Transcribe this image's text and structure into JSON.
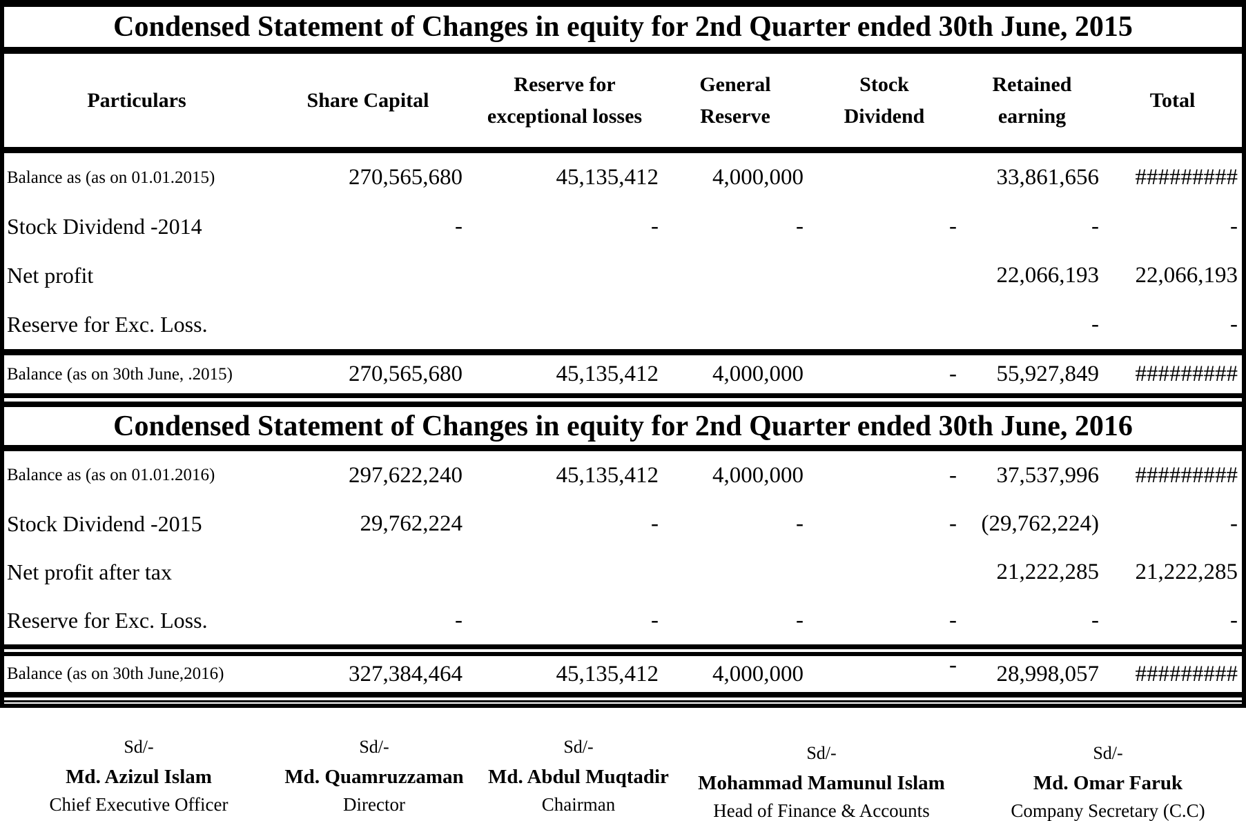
{
  "colors": {
    "ink": "#000000",
    "paper": "#ffffff"
  },
  "header": {
    "columns": [
      {
        "lines": [
          "Particulars"
        ]
      },
      {
        "lines": [
          "Share Capital"
        ]
      },
      {
        "lines": [
          "Reserve for",
          "exceptional losses"
        ]
      },
      {
        "lines": [
          "General",
          "Reserve"
        ]
      },
      {
        "lines": [
          "Stock",
          "Dividend"
        ]
      },
      {
        "lines": [
          "Retained",
          "earning"
        ]
      },
      {
        "lines": [
          "Total"
        ]
      }
    ]
  },
  "sections": [
    {
      "title": "Condensed Statement of Changes in equity for 2nd Quarter ended 30th June, 2015",
      "rows": [
        {
          "label": "Balance as (as on 01.01.2015)",
          "small_label": true,
          "cells": [
            "270,565,680",
            "45,135,412",
            "4,000,000",
            "",
            "33,861,656",
            "#########"
          ]
        },
        {
          "label": "Stock Dividend -2014",
          "small_label": false,
          "cells": [
            "-",
            "-",
            "-",
            "-",
            "-",
            "-"
          ]
        },
        {
          "label": "Net profit",
          "small_label": false,
          "cells": [
            "",
            "",
            "",
            "",
            "22,066,193",
            "22,066,193"
          ]
        },
        {
          "label": "Reserve for Exc. Loss.",
          "small_label": false,
          "cells": [
            "",
            "",
            "",
            "",
            "-",
            "-"
          ]
        }
      ],
      "balance_row": {
        "label": "Balance (as on 30th June, .2015)",
        "cells": [
          "270,565,680",
          "45,135,412",
          "4,000,000",
          "-",
          "55,927,849",
          "#########"
        ],
        "raised_dash_col": -1
      }
    },
    {
      "title": "Condensed Statement of Changes in equity for 2nd Quarter ended 30th June, 2016",
      "rows": [
        {
          "label": "Balance as (as on 01.01.2016)",
          "small_label": true,
          "cells": [
            "297,622,240",
            "45,135,412",
            "4,000,000",
            "-",
            "37,537,996",
            "#########"
          ]
        },
        {
          "label": "Stock Dividend -2015",
          "small_label": false,
          "cells": [
            "29,762,224",
            "-",
            "-",
            "-",
            "(29,762,224)",
            "-"
          ]
        },
        {
          "label": "Net profit after tax",
          "small_label": false,
          "cells": [
            "",
            "",
            "",
            "",
            "21,222,285",
            "21,222,285"
          ]
        },
        {
          "label": "Reserve for Exc. Loss.",
          "small_label": false,
          "cells": [
            "-",
            "-",
            "-",
            "-",
            "-",
            "-"
          ]
        }
      ],
      "balance_row": {
        "label": "Balance (as on 30th June,2016)",
        "cells": [
          "327,384,464",
          "45,135,412",
          "4,000,000",
          "-",
          "28,998,057",
          "#########"
        ],
        "raised_dash_col": 3
      }
    }
  ],
  "signatures": [
    {
      "sd": "Sd/-",
      "name": "Md. Azizul Islam",
      "title": "Chief Executive Officer"
    },
    {
      "sd": "Sd/-",
      "name": "Md. Quamruzzaman",
      "title": "Director"
    },
    {
      "sd": "Sd/-",
      "name": "Md. Abdul Muqtadir",
      "title": "Chairman"
    },
    {
      "sd": "Sd/-",
      "name": "Mohammad Mamunul Islam",
      "title": "Head of Finance & Accounts"
    },
    {
      "sd": "Sd/-",
      "name": "Md. Omar Faruk",
      "title": "Company Secretary (C.C)"
    }
  ]
}
